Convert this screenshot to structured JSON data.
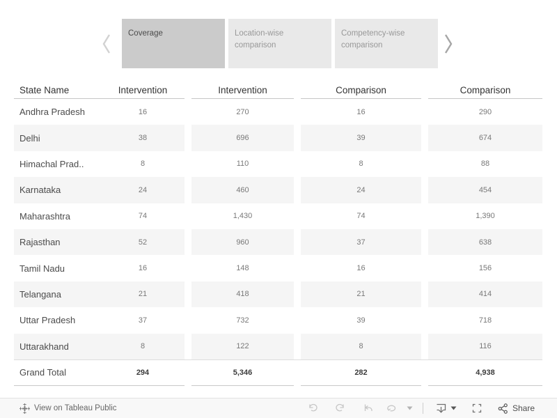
{
  "tab_bar": {
    "active_tab": "Coverage",
    "tabs": [
      {
        "label": "Coverage"
      },
      {
        "label": "Location-wise comparison"
      },
      {
        "label": "Competency-wise comparison"
      }
    ]
  },
  "table": {
    "columns": [
      "State Name",
      "Intervention",
      "Intervention",
      "Comparison",
      "Comparison"
    ],
    "rows": [
      {
        "state": "Andhra Pradesh",
        "values": [
          "16",
          "270",
          "16",
          "290"
        ]
      },
      {
        "state": "Delhi",
        "values": [
          "38",
          "696",
          "39",
          "674"
        ]
      },
      {
        "state": "Himachal Prad..",
        "values": [
          "8",
          "110",
          "8",
          "88"
        ]
      },
      {
        "state": "Karnataka",
        "values": [
          "24",
          "460",
          "24",
          "454"
        ]
      },
      {
        "state": "Maharashtra",
        "values": [
          "74",
          "1,430",
          "74",
          "1,390"
        ]
      },
      {
        "state": "Rajasthan",
        "values": [
          "52",
          "960",
          "37",
          "638"
        ]
      },
      {
        "state": "Tamil Nadu",
        "values": [
          "16",
          "148",
          "16",
          "156"
        ]
      },
      {
        "state": "Telangana",
        "values": [
          "21",
          "418",
          "21",
          "414"
        ]
      },
      {
        "state": "Uttar Pradesh",
        "values": [
          "37",
          "732",
          "39",
          "718"
        ]
      },
      {
        "state": "Uttarakhand",
        "values": [
          "8",
          "122",
          "8",
          "116"
        ]
      }
    ],
    "grand_total": {
      "state": "Grand Total",
      "values": [
        "294",
        "5,346",
        "282",
        "4,938"
      ]
    }
  },
  "toolbar": {
    "view_on_label": "View on Tableau Public",
    "share_label": "Share"
  },
  "colors": {
    "active_tab_bg": "#cbcbcb",
    "inactive_tab_bg": "#e9e9e9",
    "row_band_bg": "#f5f5f5",
    "toolbar_bg": "#f8f8f8"
  }
}
